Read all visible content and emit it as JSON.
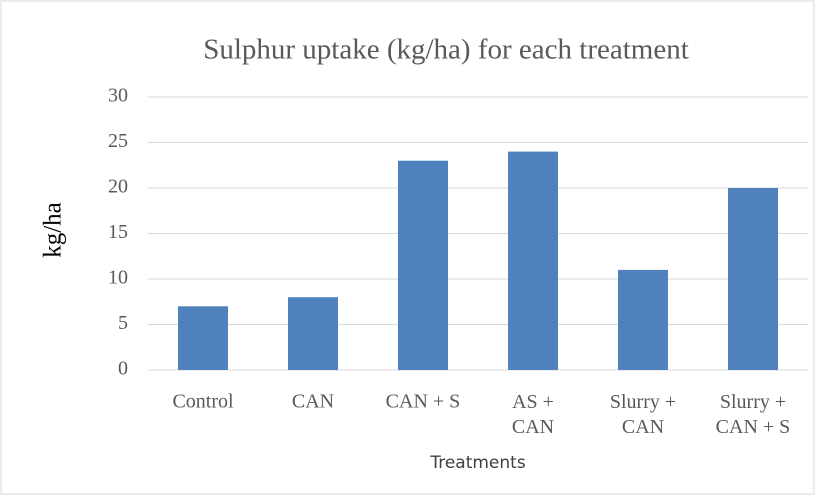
{
  "chart_data": {
    "type": "bar",
    "title": "Sulphur uptake (kg/ha) for each treatment",
    "x_label": "Treatments",
    "y_label": "kg/ha",
    "categories": [
      "Control",
      "CAN",
      "CAN + S",
      "AS + CAN",
      "Slurry + CAN",
      "Slurry + CAN + S"
    ],
    "values": [
      7,
      8,
      23,
      24,
      11,
      20
    ],
    "color": "#4f81bd",
    "ylim": [
      0,
      30
    ],
    "yticks": [
      0,
      5,
      10,
      15,
      20,
      25,
      30
    ],
    "grid": true
  }
}
